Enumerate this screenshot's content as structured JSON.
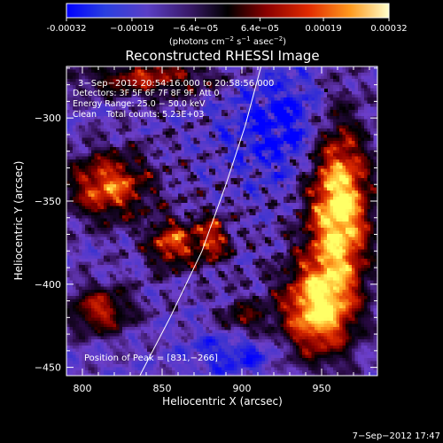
{
  "chart_data": {
    "type": "heatmap",
    "title": "Reconstructed RHESSI Image",
    "xlabel": "Heliocentric X (arcsec)",
    "ylabel": "Heliocentric Y (arcsec)",
    "xlim": [
      790,
      985
    ],
    "ylim": [
      -455,
      -269
    ],
    "x_ticks": [
      800,
      850,
      900,
      950
    ],
    "y_ticks": [
      -300,
      -350,
      -400,
      -450
    ],
    "x_tick_labels": [
      "800",
      "850",
      "900",
      "950"
    ],
    "y_tick_labels": [
      "−300",
      "−350",
      "−400",
      "−450"
    ],
    "colorbar": {
      "range": [
        -0.00032,
        0.00032
      ],
      "tick_values": [
        -0.00032,
        -0.00019,
        -6.4e-05,
        6.4e-05,
        0.00019,
        0.00032
      ],
      "tick_labels": [
        "-0.00032",
        "−0.00019",
        "−6.4e−05",
        "6.4e−05",
        "0.00019",
        "0.00032"
      ],
      "unit_text": "(photons cm",
      "unit_sup1": "−2",
      "unit_mid": " s",
      "unit_sup2": "−1",
      "unit_end": " asec",
      "unit_sup3": "−2",
      "unit_close": ")"
    },
    "annotations": {
      "time_range": "3−Sep−2012 20:54:16.000 to 20:58:56.000",
      "detectors": "Detectors: 3F 5F 6F 7F 8F 9F, Att 0",
      "energy_range": "Energy Range: 25.0 − 50.0 keV",
      "clean_label": "Clean",
      "total_counts": "Total counts: 5.23E+03",
      "peak_position": "Position of Peak = [831,−266]",
      "footer_timestamp": "7−Sep−2012 17:47"
    },
    "limb_curve": [
      [
        836,
        -455
      ],
      [
        855,
        -420
      ],
      [
        875,
        -380
      ],
      [
        890,
        -340
      ],
      [
        902,
        -305
      ],
      [
        912,
        -269
      ]
    ],
    "peak": [
      831,
      -266
    ],
    "grid": false,
    "colormap": [
      "#0000ff",
      "#3a32d0",
      "#6c3ec8",
      "#2a0a45",
      "#000000",
      "#8a0000",
      "#dd2a00",
      "#ff9a1e",
      "#ffff66"
    ]
  }
}
